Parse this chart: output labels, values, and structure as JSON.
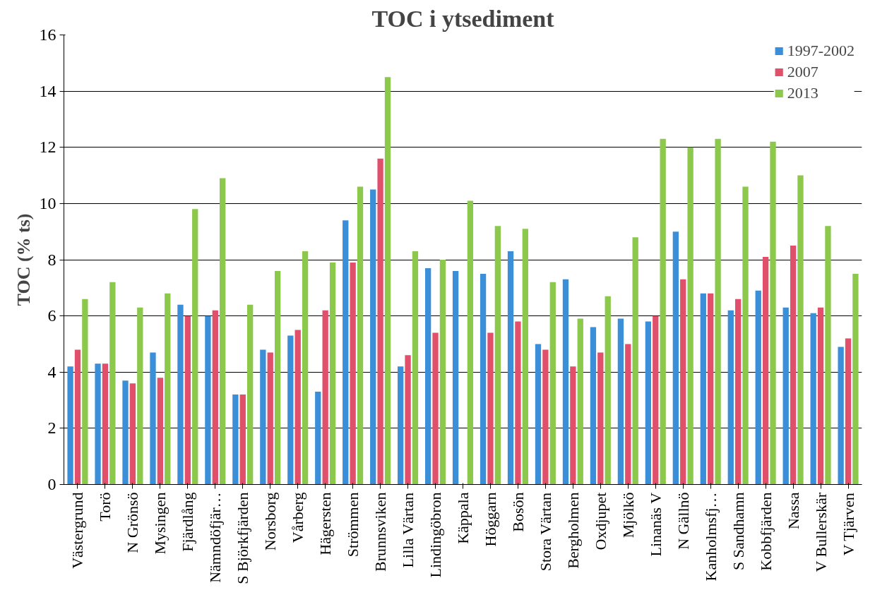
{
  "chart_data": {
    "type": "bar",
    "title": "TOC i ytsediment",
    "ylabel": "TOC (% ts)",
    "categories": [
      "Västergrund",
      "Torö",
      "N Grönsö",
      "Mysingen",
      "Fjärdlång",
      "Nämndöfjär…",
      "S Björkfjärden",
      "Norsborg",
      "Vårberg",
      "Hägersten",
      "Strömmen",
      "Brunnsviken",
      "Lilla Värtan",
      "Lindingöbron",
      "Käppala",
      "Höggarn",
      "Bosön",
      "Stora Värtan",
      "Bergholmen",
      "Oxdjupet",
      "Mjölkö",
      "Linanäs V",
      "N Gällnö",
      "Kanholmsfj…",
      "S Sandhamn",
      "Kobbfjärden",
      "Nassa",
      "V Bullerskär",
      "V Tjärven"
    ],
    "series": [
      {
        "name": "1997-2002",
        "color": "#3a8fd8",
        "values": [
          4.2,
          4.3,
          3.7,
          4.7,
          6.4,
          6.0,
          3.2,
          4.8,
          5.3,
          3.3,
          9.4,
          10.5,
          4.2,
          7.7,
          7.6,
          7.5,
          8.3,
          5.0,
          7.3,
          5.6,
          5.9,
          5.8,
          9.0,
          6.8,
          6.2,
          6.9,
          6.3,
          6.1,
          4.9
        ]
      },
      {
        "name": "2007",
        "color": "#e0506a",
        "values": [
          4.8,
          4.3,
          3.6,
          3.8,
          6.0,
          6.2,
          3.2,
          4.7,
          5.5,
          6.2,
          7.9,
          11.6,
          4.6,
          5.4,
          null,
          5.4,
          5.8,
          4.8,
          4.2,
          4.7,
          5.0,
          6.0,
          7.3,
          6.8,
          6.6,
          8.1,
          8.5,
          6.3,
          5.2
        ]
      },
      {
        "name": "2013",
        "color": "#8cc84b",
        "values": [
          6.6,
          7.2,
          6.3,
          6.8,
          9.8,
          10.9,
          6.4,
          7.6,
          8.3,
          7.9,
          10.6,
          14.5,
          8.3,
          8.0,
          10.1,
          9.2,
          9.1,
          7.2,
          5.9,
          6.7,
          8.8,
          12.3,
          12.0,
          12.3,
          10.6,
          12.2,
          11.0,
          9.2,
          7.5
        ]
      }
    ],
    "ylim": [
      0,
      16
    ],
    "yticks": [
      0,
      2,
      4,
      6,
      8,
      10,
      12,
      14,
      16
    ],
    "grid": "y",
    "legend": "top right"
  }
}
